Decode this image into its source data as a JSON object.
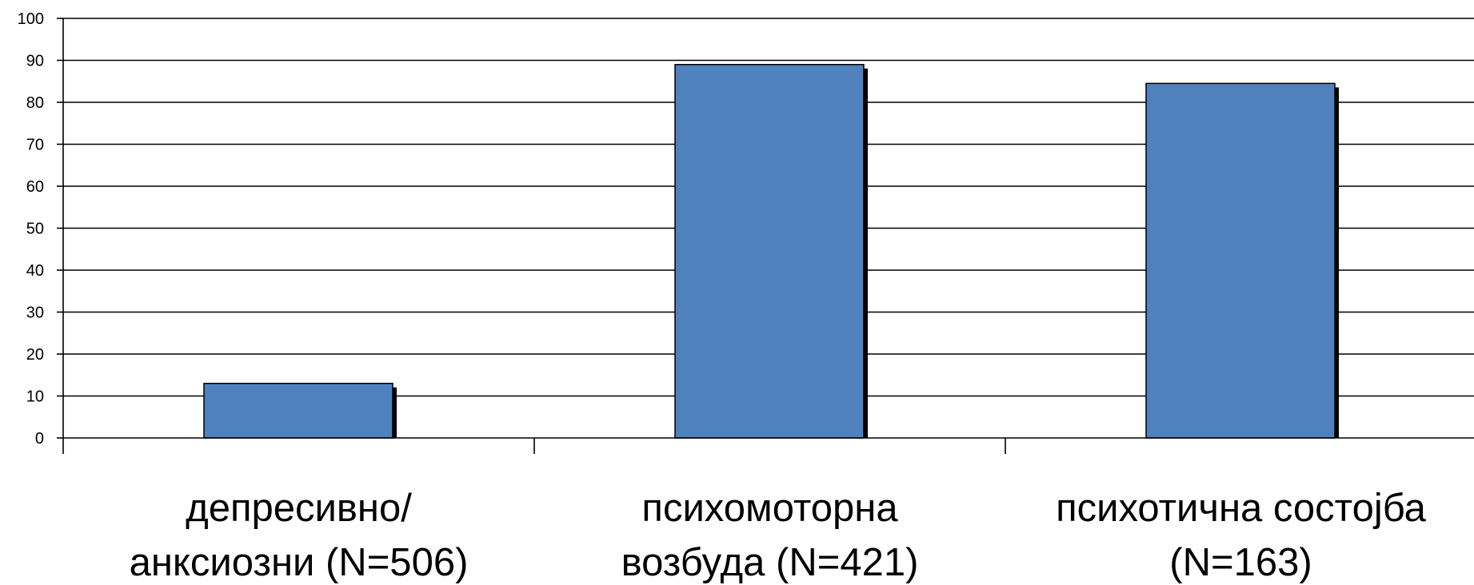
{
  "chart_data": {
    "type": "bar",
    "title": "",
    "xlabel": "",
    "ylabel": "",
    "categories": [
      [
        "депресивно/",
        "анксиозни (N=506)"
      ],
      [
        "психомоторна",
        "возбуда (N=421)"
      ],
      [
        "психотична состојба",
        "(N=163)"
      ]
    ],
    "values": [
      13,
      89,
      84.5
    ],
    "ylim": [
      0,
      100
    ],
    "yticks": [
      "0",
      "10",
      "20",
      "30",
      "40",
      "50",
      "60",
      "70",
      "80",
      "90",
      "100"
    ],
    "grid": true,
    "legend": "none",
    "bar_color": "#4f81bd",
    "shadow_color": "#000000"
  }
}
